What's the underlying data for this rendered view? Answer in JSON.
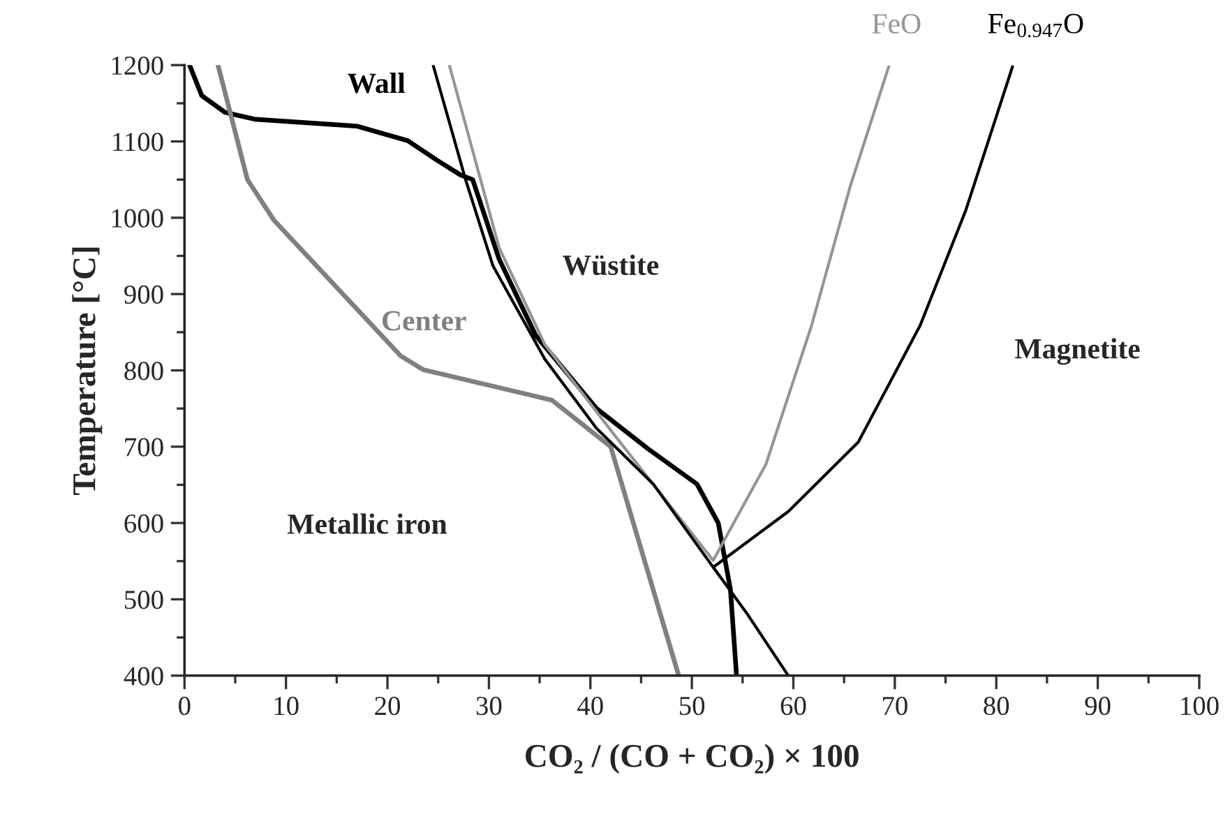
{
  "chart_data": {
    "type": "line",
    "xlabel": "CO₂ / (CO + CO₂) × 100",
    "ylabel": "Temperature [°C]",
    "xlim": [
      0,
      100
    ],
    "xticks": [
      0,
      10,
      20,
      30,
      40,
      50,
      60,
      70,
      80,
      90,
      100
    ],
    "ylim": [
      400,
      1200
    ],
    "yticks": [
      400,
      500,
      600,
      700,
      800,
      900,
      1000,
      1100,
      1200
    ],
    "grid": false,
    "marker": "none",
    "line_style": "solid",
    "series": [
      {
        "name": "Wall",
        "color": "#000000",
        "x": [
          0.5,
          1.7,
          4,
          7,
          17,
          22,
          24.7,
          27.2,
          28.4,
          31,
          34.6,
          40.6,
          45.7,
          50.5,
          52.6,
          53.8,
          54.4
        ],
        "values": [
          1200,
          1160,
          1138,
          1129,
          1120,
          1101,
          1077,
          1056,
          1050,
          946,
          846,
          750,
          697,
          651,
          600,
          513,
          400
        ]
      },
      {
        "name": "Center",
        "color": "#808080",
        "x": [
          3.3,
          6.2,
          8.8,
          21.3,
          23.5,
          36.2,
          42,
          48.7
        ],
        "values": [
          1200,
          1050,
          997,
          819,
          801,
          761,
          700,
          400
        ]
      },
      {
        "name": "FeO",
        "color": "#959595",
        "x": [
          26.1,
          31,
          35.5,
          42.5,
          52.1,
          57.3,
          61.8,
          65.6,
          69.4
        ],
        "values": [
          1200,
          961,
          834,
          713,
          551,
          677,
          859,
          1041,
          1198
        ]
      },
      {
        "name": "Fe$_{0.947}$O",
        "color": "#000000",
        "x": [
          52.2,
          59.5,
          66.4,
          72.5,
          77,
          81.6
        ],
        "values": [
          543,
          615,
          706,
          859,
          1010,
          1198
        ]
      },
      {
        "color": "#000000",
        "x": [
          24.5,
          27.7,
          30.4,
          35.5,
          40.6,
          46.2,
          52.1,
          55.5,
          59.5
        ],
        "values": [
          1200,
          1050,
          937,
          815,
          724,
          651,
          542,
          480,
          400
        ]
      }
    ],
    "annotations": [
      "Wüstite",
      "Metallic iron",
      "Magnetite"
    ]
  }
}
